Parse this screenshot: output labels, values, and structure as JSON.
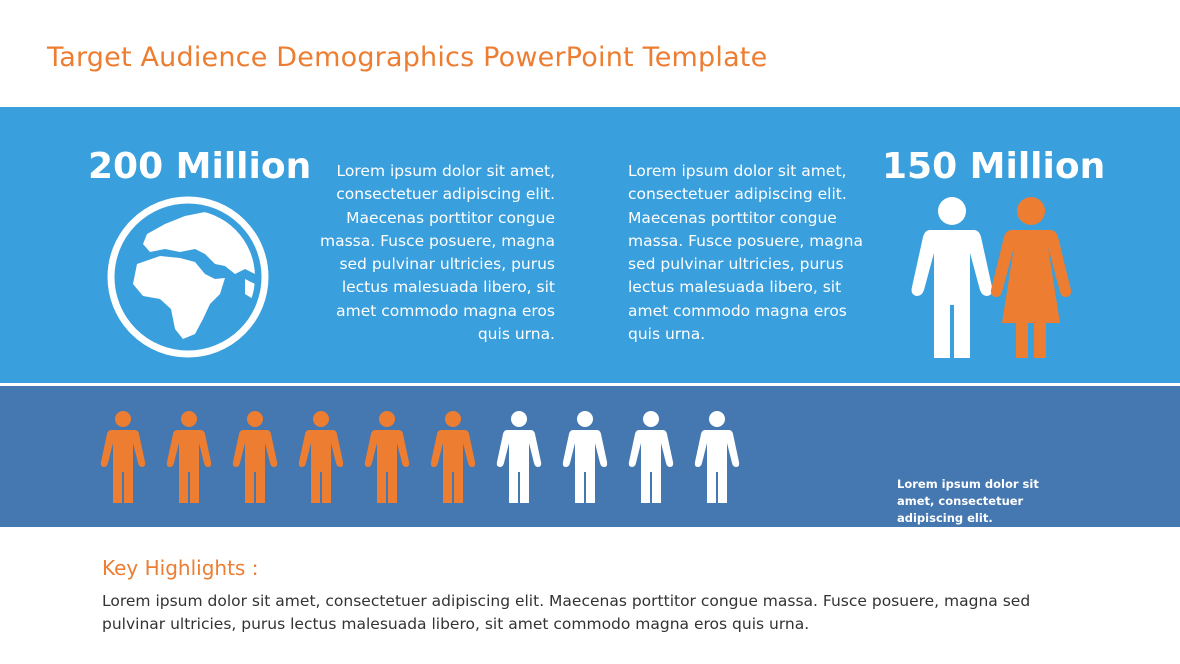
{
  "title": "Target Audience Demographics PowerPoint Template",
  "left_stat": {
    "value": "200 Million",
    "icon": "globe-icon",
    "text": "Lorem ipsum dolor sit amet, consectetuer adipiscing elit. Maecenas porttitor congue massa. Fusce posuere, magna sed pulvinar ultricies, purus lectus malesuada libero, sit amet commodo magna eros quis urna."
  },
  "right_stat": {
    "value": "150 Million",
    "icon": "man-woman-icon",
    "text": "Lorem ipsum dolor sit amet, consectetuer adipiscing elit. Maecenas porttitor congue massa. Fusce posuere, magna sed pulvinar ultricies, purus lectus malesuada libero, sit amet commodo magna eros quis urna."
  },
  "people_ratio": {
    "highlighted": 6,
    "total": 10,
    "note": "Lorem ipsum dolor sit amet, consectetuer adipiscing elit."
  },
  "highlights": {
    "heading": "Key Highlights :",
    "text": "Lorem ipsum dolor sit amet, consectetuer  adipiscing elit. Maecenas porttitor congue massa. Fusce posuere, magna sed pulvinar ultricies, purus lectus malesuada libero, sit amet commodo magna eros quis urna."
  },
  "colors": {
    "accent": "#ED7D31",
    "top_band": "#3A9FDD",
    "bottom_band": "#4577B0"
  }
}
